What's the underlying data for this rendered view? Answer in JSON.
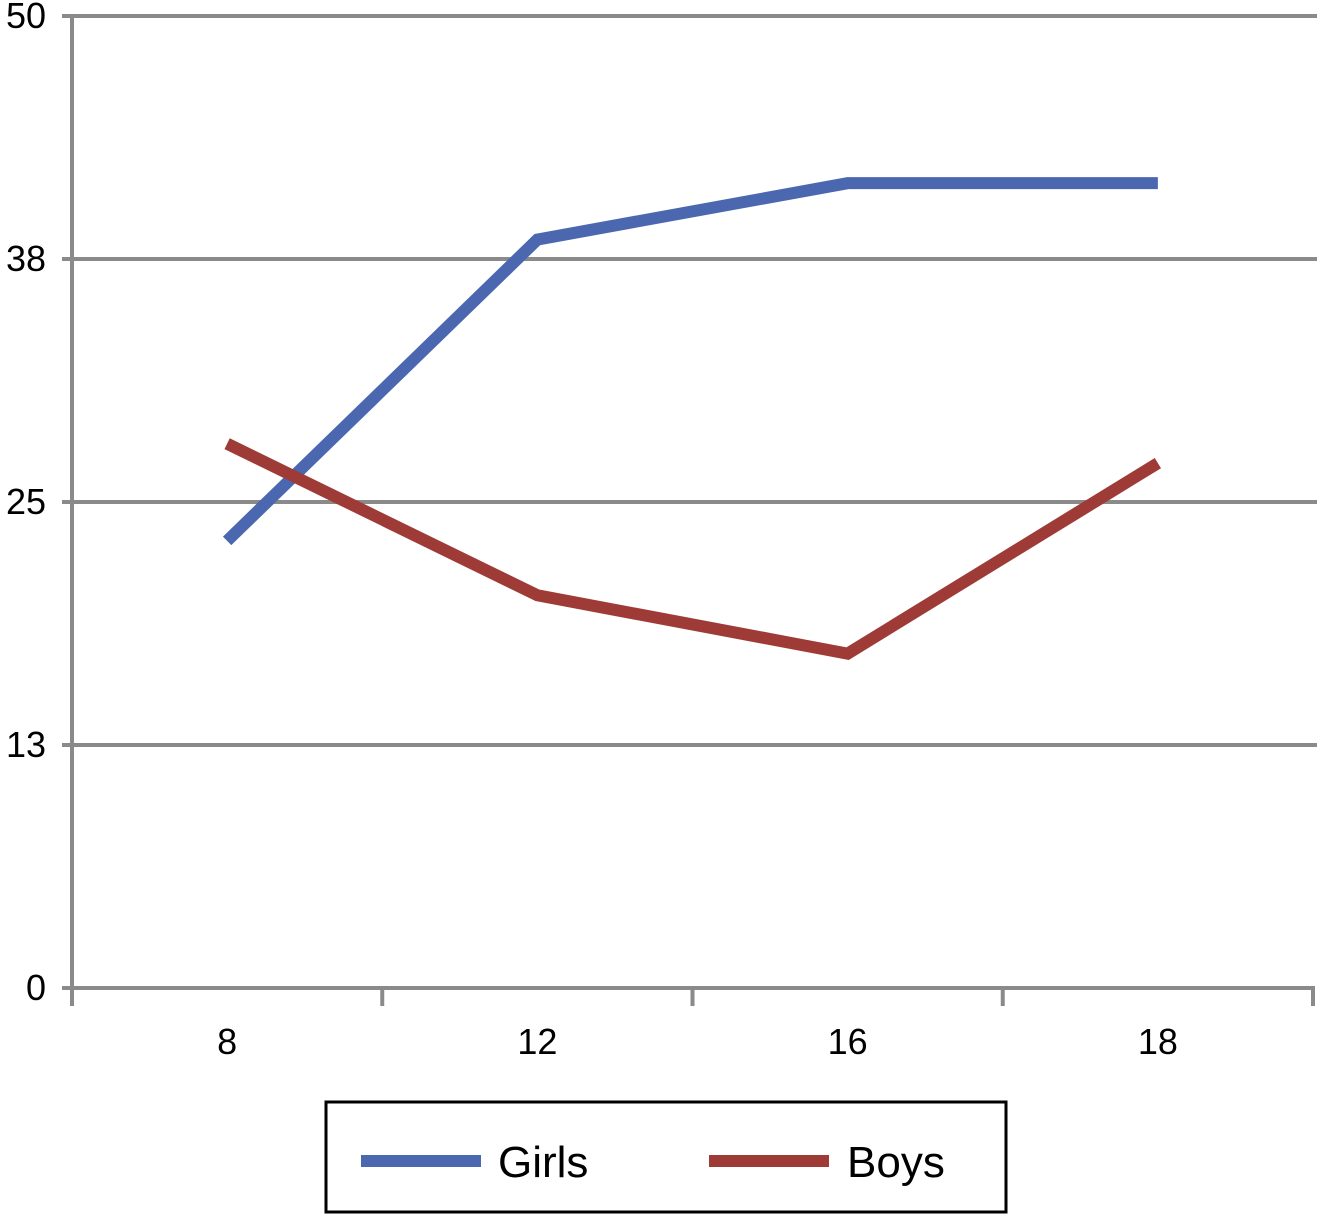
{
  "chart_data": {
    "type": "line",
    "categories": [
      "8",
      "12",
      "16",
      "18"
    ],
    "series": [
      {
        "name": "Girls",
        "values": [
          23,
          38.5,
          41.4,
          41.4
        ],
        "color": "#4a67b0"
      },
      {
        "name": "Boys",
        "values": [
          28,
          20.2,
          17.2,
          27
        ],
        "color": "#9e3b37"
      }
    ],
    "ylim": [
      0,
      50
    ],
    "yticks": [
      "0",
      "13",
      "25",
      "38",
      "50"
    ],
    "ytick_values": [
      0,
      12.5,
      25,
      37.5,
      50
    ],
    "grid": true,
    "legend_position": "bottom",
    "title": "",
    "xlabel": "",
    "ylabel": ""
  }
}
